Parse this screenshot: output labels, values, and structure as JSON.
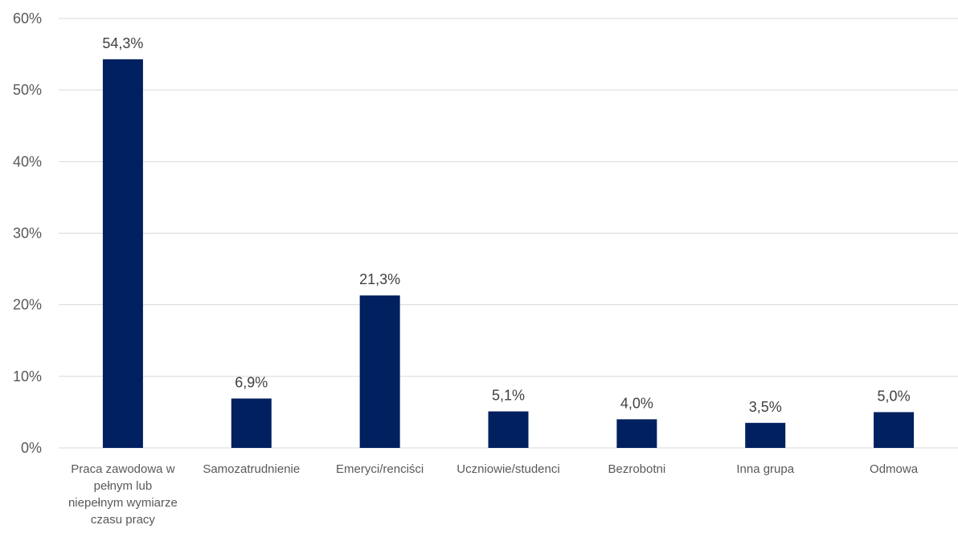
{
  "chart_data": {
    "type": "bar",
    "categories": [
      [
        "Praca zawodowa w",
        "pełnym lub",
        "niepełnym wymiarze",
        "czasu pracy"
      ],
      [
        "Samozatrudnienie"
      ],
      [
        "Emeryci/renciści"
      ],
      [
        "Uczniowie/studenci"
      ],
      [
        "Bezrobotni"
      ],
      [
        "Inna grupa"
      ],
      [
        "Odmowa"
      ]
    ],
    "values": [
      54.3,
      6.9,
      21.3,
      5.1,
      4.0,
      3.5,
      5.0
    ],
    "data_labels": [
      "54,3%",
      "6,9%",
      "21,3%",
      "5,1%",
      "4,0%",
      "3,5%",
      "5,0%"
    ],
    "title": "",
    "xlabel": "",
    "ylabel": "",
    "ylim": [
      0,
      60
    ],
    "yticks": [
      0,
      10,
      20,
      30,
      40,
      50,
      60
    ],
    "ytick_labels": [
      "0%",
      "10%",
      "20%",
      "30%",
      "40%",
      "50%",
      "60%"
    ],
    "grid": true,
    "legend": "none",
    "bar_color": "#002060"
  }
}
